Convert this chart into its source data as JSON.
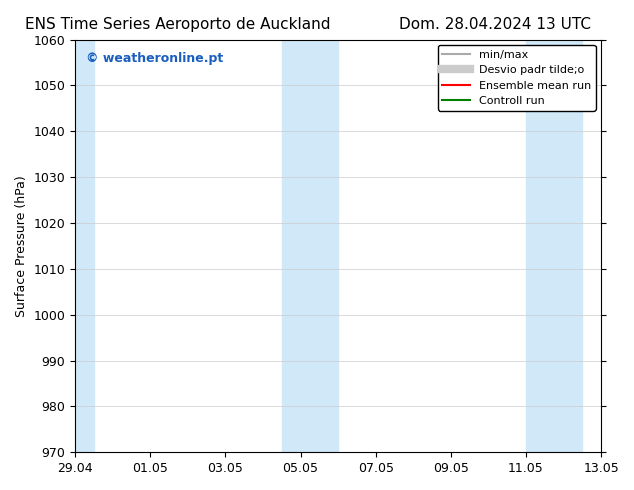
{
  "title_left": "ENS Time Series Aeroporto de Auckland",
  "title_right": "Dom. 28.04.2024 13 UTC",
  "ylabel": "Surface Pressure (hPa)",
  "ylim": [
    970,
    1060
  ],
  "yticks": [
    970,
    980,
    990,
    1000,
    1010,
    1020,
    1030,
    1040,
    1050,
    1060
  ],
  "xlim_start": "2024-04-29",
  "xlim_end": "2024-05-13",
  "xtick_labels": [
    "29.04",
    "01.05",
    "03.05",
    "05.05",
    "07.05",
    "09.05",
    "11.05",
    "13.05"
  ],
  "xtick_positions": [
    0,
    2,
    4,
    6,
    8,
    10,
    12,
    14
  ],
  "shaded_bands": [
    {
      "x_start": 0,
      "x_end": 0.5,
      "color": "#d0e8f8"
    },
    {
      "x_start": 5.5,
      "x_end": 7,
      "color": "#d0e8f8"
    },
    {
      "x_start": 12,
      "x_end": 13.5,
      "color": "#d0e8f8"
    }
  ],
  "watermark_text": "© weatheronline.pt",
  "watermark_color": "#1a5fbf",
  "legend_items": [
    {
      "label": "min/max",
      "color": "#aaaaaa",
      "linestyle": "-",
      "linewidth": 1.5
    },
    {
      "label": "Desvio padr tilde;o",
      "color": "#cccccc",
      "linestyle": "-",
      "linewidth": 6
    },
    {
      "label": "Ensemble mean run",
      "color": "#ff0000",
      "linestyle": "-",
      "linewidth": 1.5
    },
    {
      "label": "Controll run",
      "color": "#008000",
      "linestyle": "-",
      "linewidth": 1.5
    }
  ],
  "bg_color": "#ffffff",
  "plot_bg_color": "#ffffff",
  "grid_color": "#cccccc",
  "tick_label_fontsize": 9,
  "title_fontsize": 11,
  "ylabel_fontsize": 9
}
